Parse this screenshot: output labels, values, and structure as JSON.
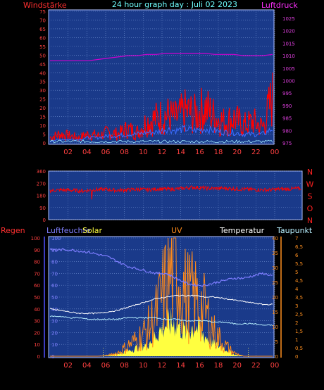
{
  "header": {
    "left_label": "Windstärke",
    "title": "24 hour graph day : Juli 02 2023",
    "right_label": "Luftdruck"
  },
  "panel2": {
    "direction_letters": [
      "N",
      "W",
      "S",
      "O",
      "N"
    ]
  },
  "panel3_labels": {
    "regen": "Regen",
    "luftfeuchte": "Luftfeuchte",
    "solar": "Solar",
    "uv": "UV",
    "temperatur": "Temperatur",
    "taupunkt": "Taupunkt"
  },
  "colors": {
    "panel_bg": "#1a3a8a",
    "grid": "#6f8fd0",
    "wind_red": "#ff0000",
    "pressure": "#d000d0",
    "gust_blue": "#3a6cff",
    "cyan": "#9fe8ff",
    "humidity": "#7d7dff",
    "temp_white": "#ffffff",
    "dew_cyan": "#b8f0ff",
    "solar_yellow": "#ffff40",
    "uv_orange": "#ff8a1a",
    "tick_red": "#ff4040",
    "tick_magenta": "#e040e0",
    "tick_orange": "#ff9020"
  },
  "chart_data": [
    {
      "type": "line",
      "title": "24 hour graph day : Juli 02 2023",
      "x_ticks": [
        "02",
        "04",
        "06",
        "08",
        "10",
        "12",
        "14",
        "16",
        "18",
        "20",
        "22",
        "00"
      ],
      "y_left_ticks": [
        "0",
        "5",
        "10",
        "15",
        "20",
        "25",
        "30",
        "35",
        "40",
        "45",
        "50",
        "55",
        "60",
        "65",
        "70",
        "75"
      ],
      "y_right_ticks": [
        "975",
        "980",
        "985",
        "990",
        "995",
        "1000",
        "1005",
        "1010",
        "1015",
        "1020",
        "1025"
      ],
      "ylim_left": [
        0,
        75
      ],
      "ylim_right": [
        975,
        1025
      ],
      "series": [
        {
          "name": "Windstärke",
          "axis": "left",
          "values": [
            3,
            5,
            4,
            3,
            5,
            4,
            6,
            5,
            8,
            6,
            12,
            14,
            16,
            14,
            18,
            16,
            20,
            15,
            12,
            14,
            10,
            12,
            9,
            26
          ]
        },
        {
          "name": "Luftdruck",
          "axis": "right",
          "values": [
            1008,
            1008,
            1008,
            1008,
            1008,
            1008.5,
            1009,
            1009.5,
            1010,
            1010,
            1010.5,
            1010.5,
            1011,
            1011,
            1011,
            1011,
            1011,
            1010.5,
            1010.5,
            1010.5,
            1010,
            1010,
            1010,
            1010.5
          ]
        },
        {
          "values": [
            1,
            2,
            2,
            2,
            3,
            3,
            4,
            4,
            5,
            5,
            6,
            6,
            8,
            7,
            8,
            7,
            8,
            7,
            6,
            6,
            5,
            5,
            5,
            8
          ]
        }
      ]
    },
    {
      "type": "line",
      "x_ticks": [
        "02",
        "04",
        "06",
        "08",
        "10",
        "12",
        "14",
        "16",
        "18",
        "20",
        "22",
        "00"
      ],
      "y_ticks": [
        "0",
        "90",
        "180",
        "270",
        "360"
      ],
      "ylim": [
        0,
        360
      ],
      "series": [
        {
          "values": [
            215,
            220,
            218,
            212,
            222,
            225,
            218,
            220,
            225,
            222,
            228,
            225,
            230,
            240,
            235,
            230,
            232,
            228,
            225,
            222,
            220,
            225,
            228,
            230
          ]
        }
      ]
    },
    {
      "type": "area",
      "x_ticks": [
        "02",
        "04",
        "06",
        "08",
        "10",
        "12",
        "14",
        "16",
        "18",
        "20",
        "22",
        "00"
      ],
      "y_left_ticks": [
        "0",
        "10",
        "20",
        "30",
        "40",
        "50",
        "60",
        "70",
        "80",
        "90",
        "100"
      ],
      "y_temp_ticks": [
        "0",
        "5",
        "10",
        "15",
        "20",
        "25",
        "30",
        "35",
        "40"
      ],
      "y_uv_ticks": [
        "0",
        "0,5",
        "1",
        "1,5",
        "2",
        "2,5",
        "3",
        "3,5",
        "4",
        "4,5",
        "5",
        "5,5",
        "6",
        "6,5",
        "7"
      ],
      "ylim_left": [
        0,
        100
      ],
      "ylim_temp": [
        0,
        40
      ],
      "ylim_uv": [
        0,
        7
      ],
      "series": [
        {
          "name": "Luftfeuchte",
          "axis": "left",
          "values": [
            90,
            90,
            90,
            89,
            88,
            86,
            84,
            80,
            76,
            74,
            72,
            70,
            70,
            66,
            62,
            60,
            60,
            62,
            64,
            66,
            66,
            68,
            70,
            68
          ]
        },
        {
          "name": "Temperatur",
          "axis": "temp",
          "values": [
            16,
            15.5,
            15,
            14.5,
            14.5,
            14.5,
            15,
            15.5,
            16.5,
            17.5,
            18.5,
            19.5,
            20,
            20.5,
            20.5,
            20.5,
            20,
            20,
            19.5,
            19,
            18.5,
            18,
            17.5,
            17.5
          ]
        },
        {
          "name": "Taupunkt",
          "axis": "temp",
          "values": [
            13.5,
            13.5,
            13,
            13,
            12.5,
            12.5,
            12.5,
            12.5,
            13,
            13,
            13,
            13,
            12.5,
            12.5,
            12,
            12,
            12,
            11.5,
            11.5,
            11,
            11,
            11,
            10.5,
            10.5
          ]
        },
        {
          "name": "Solar",
          "axis": "uv",
          "values": [
            0,
            0,
            0,
            0,
            0,
            0,
            0.05,
            0.15,
            0.3,
            0.5,
            0.7,
            1.3,
            1.9,
            2.0,
            1.4,
            1.8,
            1.2,
            0.7,
            0.5,
            0.1,
            0,
            0,
            0,
            0
          ]
        },
        {
          "name": "UV",
          "axis": "uv",
          "values": [
            0,
            0,
            0,
            0,
            0,
            0,
            0.05,
            0.2,
            0.6,
            1.0,
            1.5,
            2.5,
            4.3,
            5.3,
            3.7,
            3.4,
            2.7,
            1.4,
            0.7,
            0.2,
            0,
            0,
            0,
            0
          ]
        },
        {
          "name": "Regen",
          "axis": "left",
          "values": [
            0,
            0,
            0,
            0,
            0,
            0,
            0,
            0,
            0,
            0,
            0,
            0,
            0,
            0,
            0,
            0,
            0,
            0,
            0,
            0,
            0,
            0,
            0,
            0
          ]
        }
      ]
    }
  ]
}
